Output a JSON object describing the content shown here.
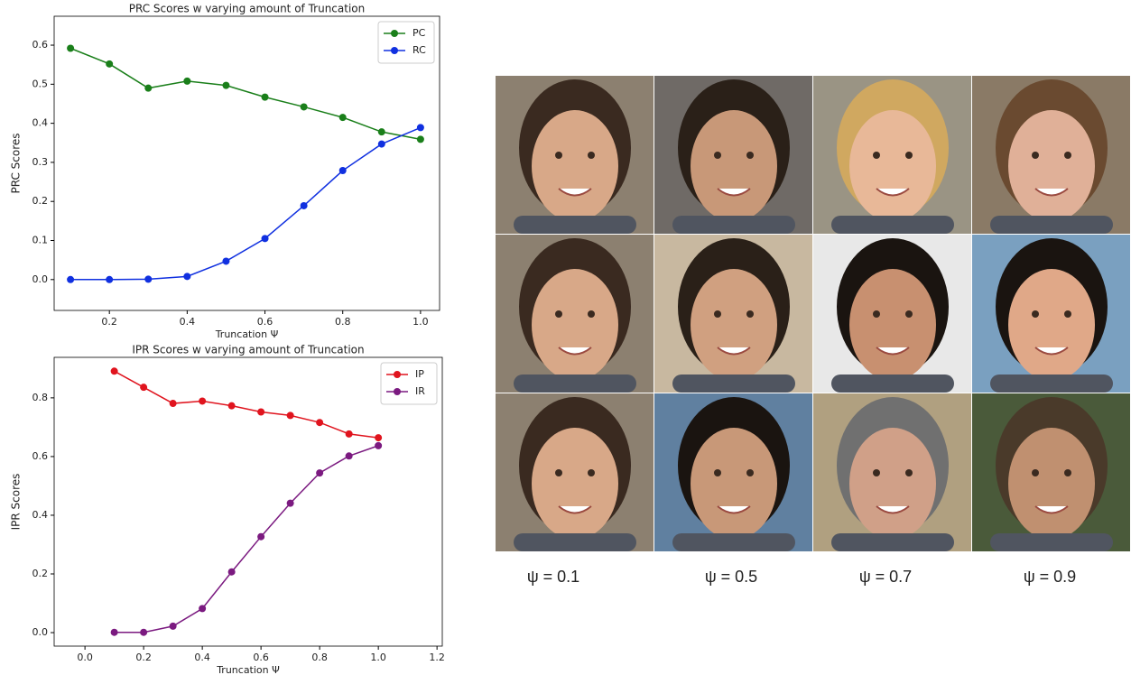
{
  "chart_data": [
    {
      "type": "line",
      "title": "PRC Scores w varying amount of Truncation",
      "x_label": "Truncation Ψ",
      "y_label": "PRC Scores",
      "x": [
        0.1,
        0.2,
        0.3,
        0.4,
        0.5,
        0.6,
        0.7,
        0.8,
        0.9,
        1.0
      ],
      "series": [
        {
          "name": "PC",
          "color": "#1a7f1a",
          "values": [
            0.592,
            0.552,
            0.49,
            0.508,
            0.497,
            0.467,
            0.442,
            0.415,
            0.378,
            0.359
          ]
        },
        {
          "name": "RC",
          "color": "#1030e0",
          "values": [
            0,
            0,
            0.001,
            0.008,
            0.047,
            0.105,
            0.189,
            0.279,
            0.347,
            0.389
          ]
        }
      ],
      "xlim": [
        0.058,
        1.049
      ],
      "xticks": [
        0.2,
        0.4,
        0.6,
        0.8,
        {
          "value": 1.0,
          "label": "1.0"
        }
      ],
      "ylim": [
        -0.079,
        0.674
      ],
      "yticks": [
        {
          "value": 0,
          "label": "0.0"
        },
        0.1,
        0.2,
        0.3,
        0.4,
        0.5,
        0.6
      ],
      "legend": "upper right"
    },
    {
      "type": "line",
      "title": "IPR Scores w varying amount of Truncation",
      "x_label": "Truncation Ψ",
      "y_label": "IPR Scores",
      "x": [
        0.1,
        0.2,
        0.3,
        0.4,
        0.5,
        0.6,
        0.7,
        0.8,
        0.9,
        1.0
      ],
      "series": [
        {
          "name": "IP",
          "color": "#e0141e",
          "values": [
            0.891,
            0.836,
            0.781,
            0.789,
            0.773,
            0.752,
            0.74,
            0.716,
            0.677,
            0.664
          ]
        },
        {
          "name": "IR",
          "color": "#7b1a80",
          "values": [
            0.001,
            0.001,
            0.022,
            0.082,
            0.207,
            0.327,
            0.441,
            0.544,
            0.602,
            0.637
          ]
        }
      ],
      "xlim": [
        -0.105,
        1.218
      ],
      "xticks": [
        {
          "value": 0,
          "label": "0.0"
        },
        0.2,
        0.4,
        0.6,
        0.8,
        {
          "value": 1.0,
          "label": "1.0"
        },
        1.2
      ],
      "ylim": [
        -0.046,
        0.938
      ],
      "yticks": [
        {
          "value": 0,
          "label": "0.0"
        },
        0.2,
        0.4,
        0.6,
        0.8
      ],
      "legend": "upper right"
    }
  ],
  "image_grid": {
    "captions": [
      "ψ = 0.1",
      "ψ = 0.5",
      "ψ = 0.7",
      "ψ = 0.9"
    ]
  }
}
